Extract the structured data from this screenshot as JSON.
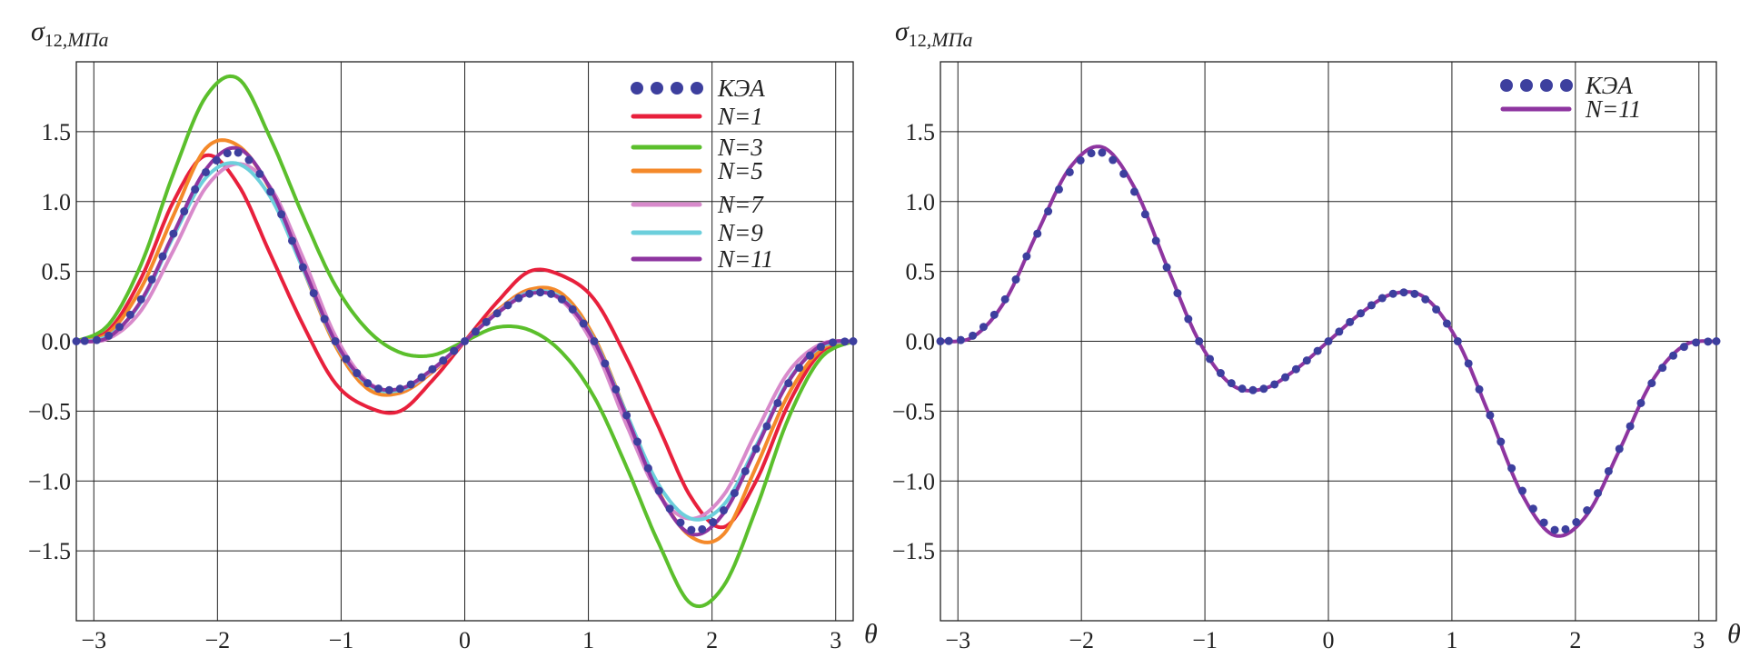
{
  "chart_data": [
    {
      "type": "line",
      "panel": "left",
      "ylabel": {
        "symbol": "σ",
        "subscript": "12",
        "unit": ",МПа"
      },
      "xlabel": "θ",
      "xlim": [
        -3.1416,
        3.1416
      ],
      "ylim": [
        -2.0,
        2.0
      ],
      "grid": true,
      "legend_position": "top-right",
      "xticks": [
        "−3",
        "−2",
        "−1",
        "0",
        "1",
        "2",
        "3"
      ],
      "xtick_values": [
        -3,
        -2,
        -1,
        0,
        1,
        2,
        3
      ],
      "yticks": [
        "1.5",
        "1.0",
        "0.5",
        "0.0",
        "−0.5",
        "−1.0",
        "−1.5"
      ],
      "ytick_values": [
        1.5,
        1.0,
        0.5,
        0.0,
        -0.5,
        -1.0,
        -1.5
      ],
      "x": [
        -3.1416,
        -2.8798,
        -2.618,
        -2.3562,
        -2.0944,
        -1.8326,
        -1.5708,
        -1.309,
        -1.0472,
        -0.7854,
        -0.5236,
        -0.2618,
        0,
        0.2618,
        0.5236,
        0.7854,
        1.0472,
        1.309,
        1.5708,
        1.8326,
        2.0944,
        2.3562,
        2.618,
        2.8798,
        3.1416
      ],
      "series": [
        {
          "name": "КЭА",
          "style": "dots",
          "color": "#3d3f9e",
          "values": [
            0,
            0.04,
            0.3,
            0.77,
            1.21,
            1.35,
            1.07,
            0.53,
            0,
            -0.3,
            -0.34,
            -0.2,
            0,
            0.2,
            0.34,
            0.3,
            0,
            -0.53,
            -1.07,
            -1.35,
            -1.21,
            -0.77,
            -0.3,
            -0.04,
            0
          ]
        },
        {
          "name": "N=1",
          "style": "line",
          "color": "#e8203c",
          "values": [
            0,
            0.08,
            0.45,
            1.0,
            1.33,
            1.12,
            0.62,
            0.12,
            -0.3,
            -0.47,
            -0.5,
            -0.28,
            0,
            0.28,
            0.5,
            0.47,
            0.3,
            -0.12,
            -0.62,
            -1.12,
            -1.33,
            -1.0,
            -0.45,
            -0.08,
            0
          ]
        },
        {
          "name": "N=3",
          "style": "line",
          "color": "#5bbf2c",
          "values": [
            0,
            0.12,
            0.55,
            1.2,
            1.75,
            1.88,
            1.45,
            0.9,
            0.4,
            0.08,
            -0.08,
            -0.1,
            0,
            0.1,
            0.08,
            -0.08,
            -0.4,
            -0.9,
            -1.45,
            -1.88,
            -1.75,
            -1.2,
            -0.55,
            -0.12,
            0
          ]
        },
        {
          "name": "N=5",
          "style": "line",
          "color": "#f4892a",
          "values": [
            0,
            0.06,
            0.38,
            0.9,
            1.38,
            1.4,
            1.08,
            0.52,
            -0.03,
            -0.34,
            -0.37,
            -0.22,
            0,
            0.22,
            0.37,
            0.34,
            0.03,
            -0.52,
            -1.08,
            -1.4,
            -1.38,
            -0.9,
            -0.38,
            -0.06,
            0
          ]
        },
        {
          "name": "N=7",
          "style": "line",
          "color": "#d88acb",
          "values": [
            0,
            0.02,
            0.22,
            0.65,
            1.1,
            1.27,
            1.1,
            0.6,
            0.04,
            -0.29,
            -0.35,
            -0.21,
            0,
            0.21,
            0.35,
            0.29,
            -0.04,
            -0.6,
            -1.1,
            -1.27,
            -1.1,
            -0.65,
            -0.22,
            -0.02,
            0
          ]
        },
        {
          "name": "N=9",
          "style": "line",
          "color": "#6ccfdc",
          "values": [
            0,
            0.04,
            0.28,
            0.75,
            1.17,
            1.27,
            1.03,
            0.52,
            -0.01,
            -0.31,
            -0.35,
            -0.2,
            0,
            0.2,
            0.35,
            0.31,
            0.01,
            -0.52,
            -1.03,
            -1.27,
            -1.17,
            -0.75,
            -0.28,
            -0.04,
            0
          ]
        },
        {
          "name": "N=11",
          "style": "line",
          "color": "#8e35a0",
          "values": [
            0,
            0.03,
            0.29,
            0.77,
            1.23,
            1.38,
            1.09,
            0.54,
            0,
            -0.3,
            -0.34,
            -0.2,
            0,
            0.2,
            0.34,
            0.3,
            0,
            -0.54,
            -1.09,
            -1.38,
            -1.23,
            -0.77,
            -0.29,
            -0.03,
            0
          ]
        }
      ]
    },
    {
      "type": "line",
      "panel": "right",
      "ylabel": {
        "symbol": "σ",
        "subscript": "12",
        "unit": ",МПа"
      },
      "xlabel": "θ",
      "xlim": [
        -3.1416,
        3.1416
      ],
      "ylim": [
        -2.0,
        2.0
      ],
      "grid": true,
      "legend_position": "top-right",
      "xticks": [
        "−3",
        "−2",
        "−1",
        "0",
        "1",
        "2",
        "3"
      ],
      "xtick_values": [
        -3,
        -2,
        -1,
        0,
        1,
        2,
        3
      ],
      "yticks": [
        "1.5",
        "1.0",
        "0.5",
        "0.0",
        "−0.5",
        "−1.0",
        "−1.5"
      ],
      "ytick_values": [
        1.5,
        1.0,
        0.5,
        0.0,
        -0.5,
        -1.0,
        -1.5
      ],
      "x": [
        -3.1416,
        -2.8798,
        -2.618,
        -2.3562,
        -2.0944,
        -1.8326,
        -1.5708,
        -1.309,
        -1.0472,
        -0.7854,
        -0.5236,
        -0.2618,
        0,
        0.2618,
        0.5236,
        0.7854,
        1.0472,
        1.309,
        1.5708,
        1.8326,
        2.0944,
        2.3562,
        2.618,
        2.8798,
        3.1416
      ],
      "series": [
        {
          "name": "КЭА",
          "style": "dots",
          "color": "#3d3f9e",
          "values": [
            0,
            0.04,
            0.3,
            0.77,
            1.21,
            1.35,
            1.07,
            0.53,
            0,
            -0.3,
            -0.34,
            -0.2,
            0,
            0.2,
            0.34,
            0.3,
            0,
            -0.53,
            -1.07,
            -1.35,
            -1.21,
            -0.77,
            -0.3,
            -0.04,
            0
          ]
        },
        {
          "name": "N=11",
          "style": "line",
          "color": "#8e35a0",
          "values": [
            0,
            0.03,
            0.29,
            0.78,
            1.24,
            1.39,
            1.1,
            0.54,
            0,
            -0.31,
            -0.34,
            -0.2,
            0,
            0.2,
            0.34,
            0.31,
            0,
            -0.54,
            -1.1,
            -1.39,
            -1.24,
            -0.78,
            -0.29,
            -0.03,
            0
          ]
        }
      ]
    }
  ]
}
